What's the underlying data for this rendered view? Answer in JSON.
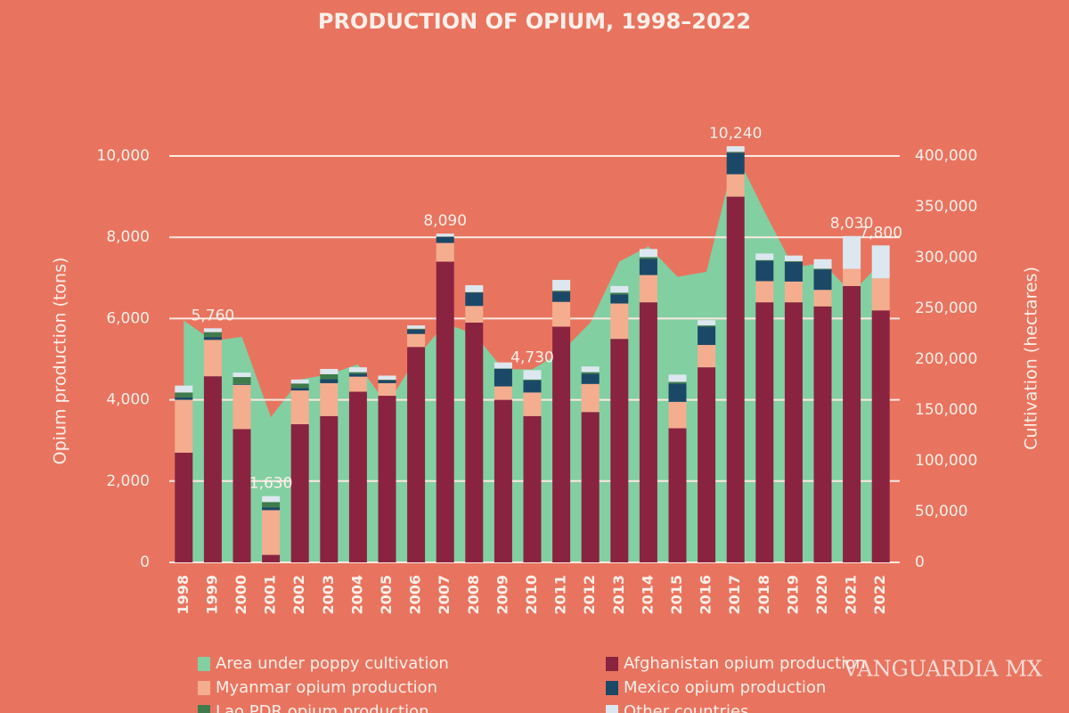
{
  "chart_data": {
    "type": "bar",
    "stacked": true,
    "title": "PRODUCTION OF OPIUM, 1998–2022",
    "y_label": "Opium production (tons)",
    "y2_label": "Cultivation (hectares)",
    "watermark": "VANGUARDIA MX",
    "categories": [
      "1998",
      "1999",
      "2000",
      "2001",
      "2002",
      "2003",
      "2004",
      "2005",
      "2006",
      "2007",
      "2008",
      "2009",
      "2010",
      "2011",
      "2012",
      "2013",
      "2014",
      "2015",
      "2016",
      "2017",
      "2018",
      "2019",
      "2020",
      "2021",
      "2022"
    ],
    "series": [
      {
        "name": "Area under poppy cultivation",
        "type": "area",
        "axis": "y2",
        "color": "#82cfa2",
        "values": [
          238000,
          218000,
          222000,
          143000,
          180000,
          185000,
          195000,
          155000,
          201000,
          235000,
          225000,
          190000,
          190000,
          207000,
          236000,
          296000,
          311000,
          281000,
          286000,
          403000,
          345000,
          290000,
          295000,
          265000,
          295000
        ]
      },
      {
        "name": "Afghanistan opium production",
        "color": "#8a2340",
        "values": [
          2700,
          4580,
          3280,
          185,
          3400,
          3600,
          4200,
          4100,
          5300,
          7400,
          5900,
          4000,
          3600,
          5800,
          3700,
          5500,
          6400,
          3300,
          4800,
          9000,
          6400,
          6400,
          6300,
          6800,
          6200
        ]
      },
      {
        "name": "Myanmar opium production",
        "color": "#f5ad8f",
        "values": [
          1300,
          895,
          1090,
          1100,
          830,
          810,
          370,
          310,
          320,
          460,
          410,
          330,
          580,
          610,
          690,
          870,
          670,
          650,
          550,
          550,
          520,
          510,
          405,
          420,
          790
        ]
      },
      {
        "name": "Mexico opium production",
        "color": "#1c4868",
        "values": [
          60,
          70,
          20,
          70,
          60,
          100,
          70,
          70,
          110,
          150,
          330,
          430,
          300,
          250,
          250,
          225,
          400,
          450,
          450,
          530,
          500,
          480,
          500,
          0,
          0
        ]
      },
      {
        "name": "Lao PDR opium production",
        "color": "#3f7b4c",
        "values": [
          120,
          120,
          170,
          130,
          110,
          120,
          40,
          15,
          20,
          10,
          10,
          10,
          20,
          25,
          40,
          40,
          40,
          40,
          30,
          20,
          20,
          20,
          20,
          0,
          0
        ]
      },
      {
        "name": "Other countries",
        "color": "#dde7ef",
        "values": [
          170,
          95,
          110,
          145,
          100,
          130,
          120,
          100,
          80,
          70,
          170,
          150,
          230,
          265,
          140,
          165,
          200,
          180,
          130,
          140,
          160,
          140,
          235,
          810,
          810
        ]
      }
    ],
    "annotations": [
      {
        "x": "1999",
        "value": 5760,
        "label": "5,760"
      },
      {
        "x": "2001",
        "value": 1630,
        "label": "1,630"
      },
      {
        "x": "2007",
        "value": 8090,
        "label": "8,090"
      },
      {
        "x": "2010",
        "value": 4730,
        "label": "4,730"
      },
      {
        "x": "2017",
        "value": 10240,
        "label": "10,240"
      },
      {
        "x": "2021",
        "value": 8030,
        "label": "8,030"
      },
      {
        "x": "2022",
        "value": 7800,
        "label": "7,800"
      }
    ],
    "ylim": [
      0,
      10000
    ],
    "yticks": [
      0,
      {
        "value": 2000,
        "label": "2,000"
      },
      {
        "value": 4000,
        "label": "4,000"
      },
      {
        "value": 6000,
        "label": "6,000"
      },
      {
        "value": 8000,
        "label": "8,000"
      },
      {
        "value": 10000,
        "label": "10,000"
      }
    ],
    "y2lim": [
      0,
      400000
    ],
    "y2ticks": [
      0,
      {
        "value": 50000,
        "label": "50,000"
      },
      {
        "value": 100000,
        "label": "100,000"
      },
      {
        "value": 150000,
        "label": "150,000"
      },
      {
        "value": 200000,
        "label": "200,000"
      },
      {
        "value": 250000,
        "label": "250,000"
      },
      {
        "value": 300000,
        "label": "300,000"
      },
      {
        "value": 350000,
        "label": "350,000"
      },
      {
        "value": 400000,
        "label": "400,000"
      }
    ],
    "grid": true
  }
}
